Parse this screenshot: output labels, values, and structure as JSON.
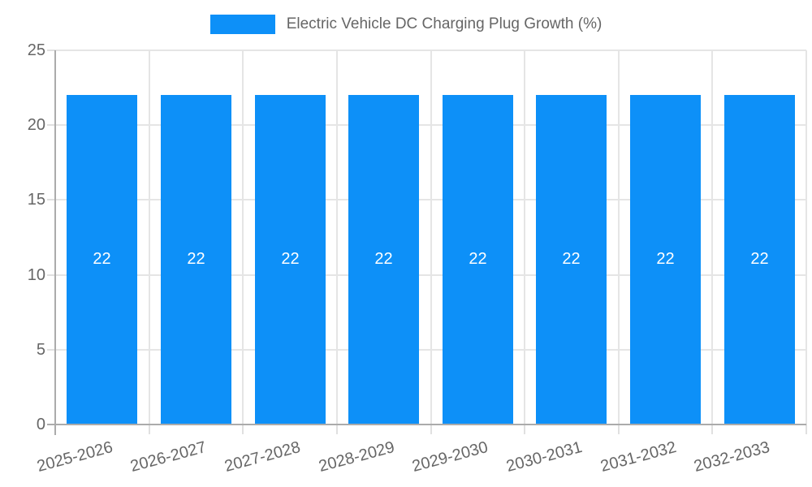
{
  "legend": {
    "label": "Electric Vehicle DC Charging Plug Growth (%)"
  },
  "chart_data": {
    "type": "bar",
    "title": "Electric Vehicle DC Charging Plug Growth (%)",
    "categories": [
      "2025-2026",
      "2026-2027",
      "2027-2028",
      "2028-2029",
      "2029-2030",
      "2030-2031",
      "2031-2032",
      "2032-2033"
    ],
    "values": [
      22,
      22,
      22,
      22,
      22,
      22,
      22,
      22
    ],
    "value_labels": [
      "22",
      "22",
      "22",
      "22",
      "22",
      "22",
      "22",
      "22"
    ],
    "xlabel": "",
    "ylabel": "",
    "ylim": [
      0,
      25
    ],
    "yticks": [
      0,
      5,
      10,
      15,
      20,
      25
    ],
    "grid": true,
    "legend_position": "top",
    "x_label_rotation_deg": -15
  },
  "colors": {
    "bar": "#0d90f8",
    "bar_value_text": "#ffffff",
    "grid": "#e5e5e5",
    "axis": "#ababab",
    "tick": "#e0e0e0",
    "text": "#666666",
    "background": "#ffffff"
  }
}
